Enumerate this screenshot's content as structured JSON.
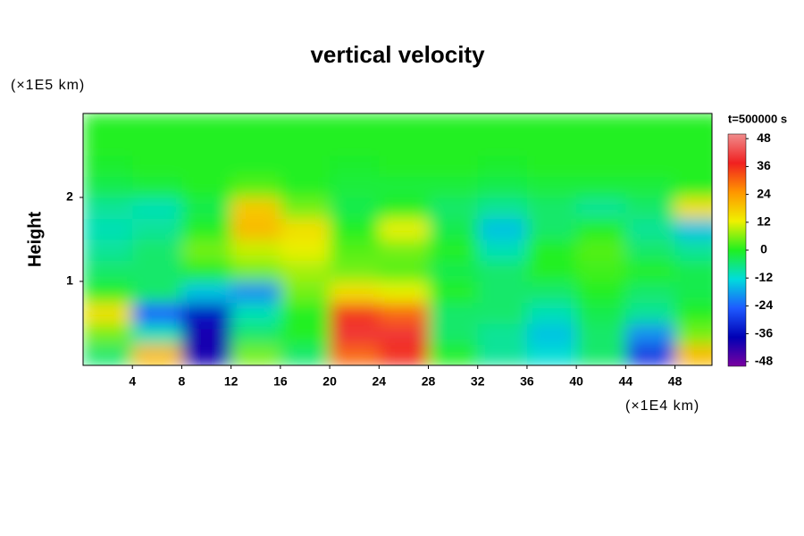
{
  "chart_data": {
    "type": "heatmap",
    "title": "vertical velocity",
    "xlabel": "(×1E4 km)",
    "ylabel": "Height",
    "yunit": "(×1E5 km)",
    "colorbar_title": "t=500000 s",
    "x": [
      2,
      6,
      10,
      14,
      18,
      22,
      26,
      30,
      34,
      38,
      42,
      46,
      50
    ],
    "y": [
      0.125,
      0.375,
      0.625,
      0.875,
      1.125,
      1.375,
      1.625,
      1.875,
      2.125,
      2.375,
      2.625,
      2.875
    ],
    "z": [
      [
        -5,
        20,
        -40,
        5,
        -5,
        30,
        36,
        0,
        -8,
        -12,
        -5,
        -30,
        20
      ],
      [
        5,
        -10,
        -40,
        -5,
        0,
        40,
        40,
        -5,
        -8,
        -15,
        -5,
        -20,
        5
      ],
      [
        15,
        -25,
        -35,
        -10,
        0,
        35,
        30,
        -5,
        -5,
        -10,
        -3,
        -8,
        0
      ],
      [
        0,
        -5,
        -15,
        -20,
        5,
        15,
        12,
        0,
        -5,
        -5,
        0,
        -5,
        -3
      ],
      [
        -5,
        -5,
        0,
        5,
        8,
        5,
        3,
        -3,
        -5,
        0,
        2,
        0,
        -3
      ],
      [
        -8,
        -5,
        5,
        10,
        12,
        3,
        5,
        0,
        -10,
        0,
        3,
        -5,
        -8
      ],
      [
        -10,
        -8,
        0,
        20,
        15,
        0,
        12,
        -3,
        -15,
        -5,
        0,
        -8,
        -15
      ],
      [
        -8,
        -10,
        -3,
        18,
        5,
        -3,
        0,
        -5,
        -8,
        -5,
        -8,
        -5,
        15
      ],
      [
        -3,
        -2,
        0,
        3,
        0,
        -2,
        -2,
        -2,
        -3,
        -2,
        -2,
        -2,
        0
      ],
      [
        -1,
        0,
        0,
        0,
        0,
        -1,
        0,
        0,
        -1,
        0,
        0,
        0,
        0
      ],
      [
        0,
        0,
        0,
        0,
        0,
        0,
        0,
        0,
        0,
        0,
        0,
        0,
        0
      ],
      [
        0,
        0,
        0,
        0,
        0,
        0,
        0,
        0,
        0,
        0,
        0,
        0,
        0
      ]
    ],
    "xlim": [
      0,
      51
    ],
    "ylim": [
      0,
      3
    ],
    "xticks": [
      4,
      8,
      12,
      16,
      20,
      24,
      28,
      32,
      36,
      40,
      44,
      48
    ],
    "yticks": [
      1,
      2
    ],
    "zlim": [
      -50,
      50
    ],
    "cbticks": [
      -48,
      -36,
      -24,
      -12,
      0,
      12,
      24,
      36,
      48
    ],
    "colormap": [
      "#7a00a0",
      "#0000b4",
      "#1e5aff",
      "#00dcdc",
      "#20f020",
      "#f0f000",
      "#ff9600",
      "#f02020",
      "#f08c8c"
    ]
  }
}
